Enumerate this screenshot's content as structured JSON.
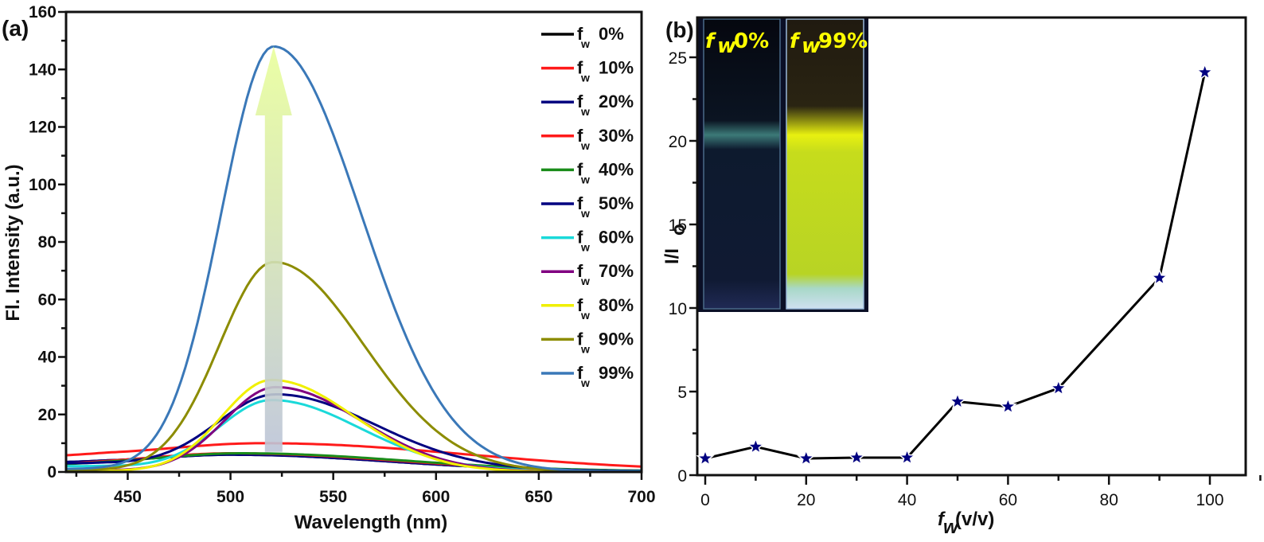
{
  "chart_data": [
    {
      "panel": "(a)",
      "type": "line",
      "title": "",
      "xlabel": "Wavelength (nm)",
      "ylabel": "Fl. Intensity (a.u.)",
      "xlim": [
        420,
        700
      ],
      "ylim": [
        0,
        160
      ],
      "xticks": [
        450,
        500,
        550,
        600,
        650,
        700
      ],
      "yticks": [
        0,
        20,
        40,
        60,
        80,
        100,
        120,
        140,
        160
      ],
      "grid": false,
      "legend_position": "top-right",
      "annotation": "upward arrow at ~520 nm indicating increasing intensity with water fraction",
      "series": [
        {
          "name": "fw 0%",
          "label_main": "f",
          "label_sub": "w",
          "label_value": "0%",
          "color": "#000000",
          "peak_x": 500,
          "peak_y": 6,
          "width": 55,
          "baseline": 3
        },
        {
          "name": "fw 10%",
          "label_main": "f",
          "label_sub": "w",
          "label_value": "10%",
          "color": "#ff1a1a",
          "peak_x": 515,
          "peak_y": 10,
          "width": 75,
          "baseline": 4.5
        },
        {
          "name": "fw 20%",
          "label_main": "f",
          "label_sub": "w",
          "label_value": "20%",
          "color": "#000080",
          "peak_x": 500,
          "peak_y": 6,
          "width": 55,
          "baseline": 3
        },
        {
          "name": "fw 30%",
          "label_main": "f",
          "label_sub": "w",
          "label_value": "30%",
          "color": "#ff1a1a",
          "peak_x": 500,
          "peak_y": 6.5,
          "width": 60,
          "baseline": 2
        },
        {
          "name": "fw 40%",
          "label_main": "f",
          "label_sub": "w",
          "label_value": "40%",
          "color": "#1a8c1a",
          "peak_x": 505,
          "peak_y": 6.5,
          "width": 60,
          "baseline": 2
        },
        {
          "name": "fw 50%",
          "label_main": "f",
          "label_sub": "w",
          "label_value": "50%",
          "color": "#000080",
          "peak_x": 522,
          "peak_y": 27,
          "width": 38,
          "baseline": 3
        },
        {
          "name": "fw 60%",
          "label_main": "f",
          "label_sub": "w",
          "label_value": "60%",
          "color": "#1ad9d9",
          "peak_x": 520,
          "peak_y": 25,
          "width": 34,
          "baseline": 2
        },
        {
          "name": "fw 70%",
          "label_main": "f",
          "label_sub": "w",
          "label_value": "70%",
          "color": "#800080",
          "peak_x": 522,
          "peak_y": 29.5,
          "width": 33,
          "baseline": 0.5
        },
        {
          "name": "fw 80%",
          "label_main": "f",
          "label_sub": "w",
          "label_value": "80%",
          "color": "#f0f000",
          "peak_x": 520,
          "peak_y": 32,
          "width": 32,
          "baseline": 0.3
        },
        {
          "name": "fw 90%",
          "label_main": "f",
          "label_sub": "w",
          "label_value": "90%",
          "color": "#8c8c00",
          "peak_x": 521,
          "peak_y": 73,
          "width": 35,
          "baseline": 0.5
        },
        {
          "name": "fw 99%",
          "label_main": "f",
          "label_sub": "w",
          "label_value": "99%",
          "color": "#3a78b8",
          "peak_x": 521,
          "peak_y": 148,
          "width": 34,
          "baseline": 1
        }
      ]
    },
    {
      "panel": "(b)",
      "type": "line",
      "title": "",
      "xlabel_main": "f",
      "xlabel_sub": "w",
      "xlabel_rest": "(v/v)",
      "ylabel_main": "I/I",
      "ylabel_sub": "o",
      "xlim": [
        0,
        110
      ],
      "ylim": [
        0,
        25
      ],
      "xticks": [
        0,
        20,
        40,
        60,
        80,
        100
      ],
      "yticks": [
        0,
        5,
        10,
        15,
        20,
        25
      ],
      "grid": false,
      "marker": "star",
      "marker_color": "#000080",
      "line_color": "#000000",
      "x": [
        0,
        10,
        20,
        30,
        40,
        50,
        60,
        70,
        90,
        99
      ],
      "y": [
        1.0,
        1.7,
        1.0,
        1.05,
        1.05,
        4.4,
        4.1,
        5.2,
        11.8,
        24.1
      ],
      "inset_photo": {
        "description": "photograph of two cuvettes under UV light",
        "left_label_main": "f",
        "left_label_sub": "w",
        "left_label_value": "0%",
        "right_label_main": "f",
        "right_label_sub": "w",
        "right_label_value": "99%",
        "label_color": "#ffff00",
        "left_liquid_color": "#0d1a2e",
        "right_liquid_color": "#c8e020"
      }
    }
  ]
}
